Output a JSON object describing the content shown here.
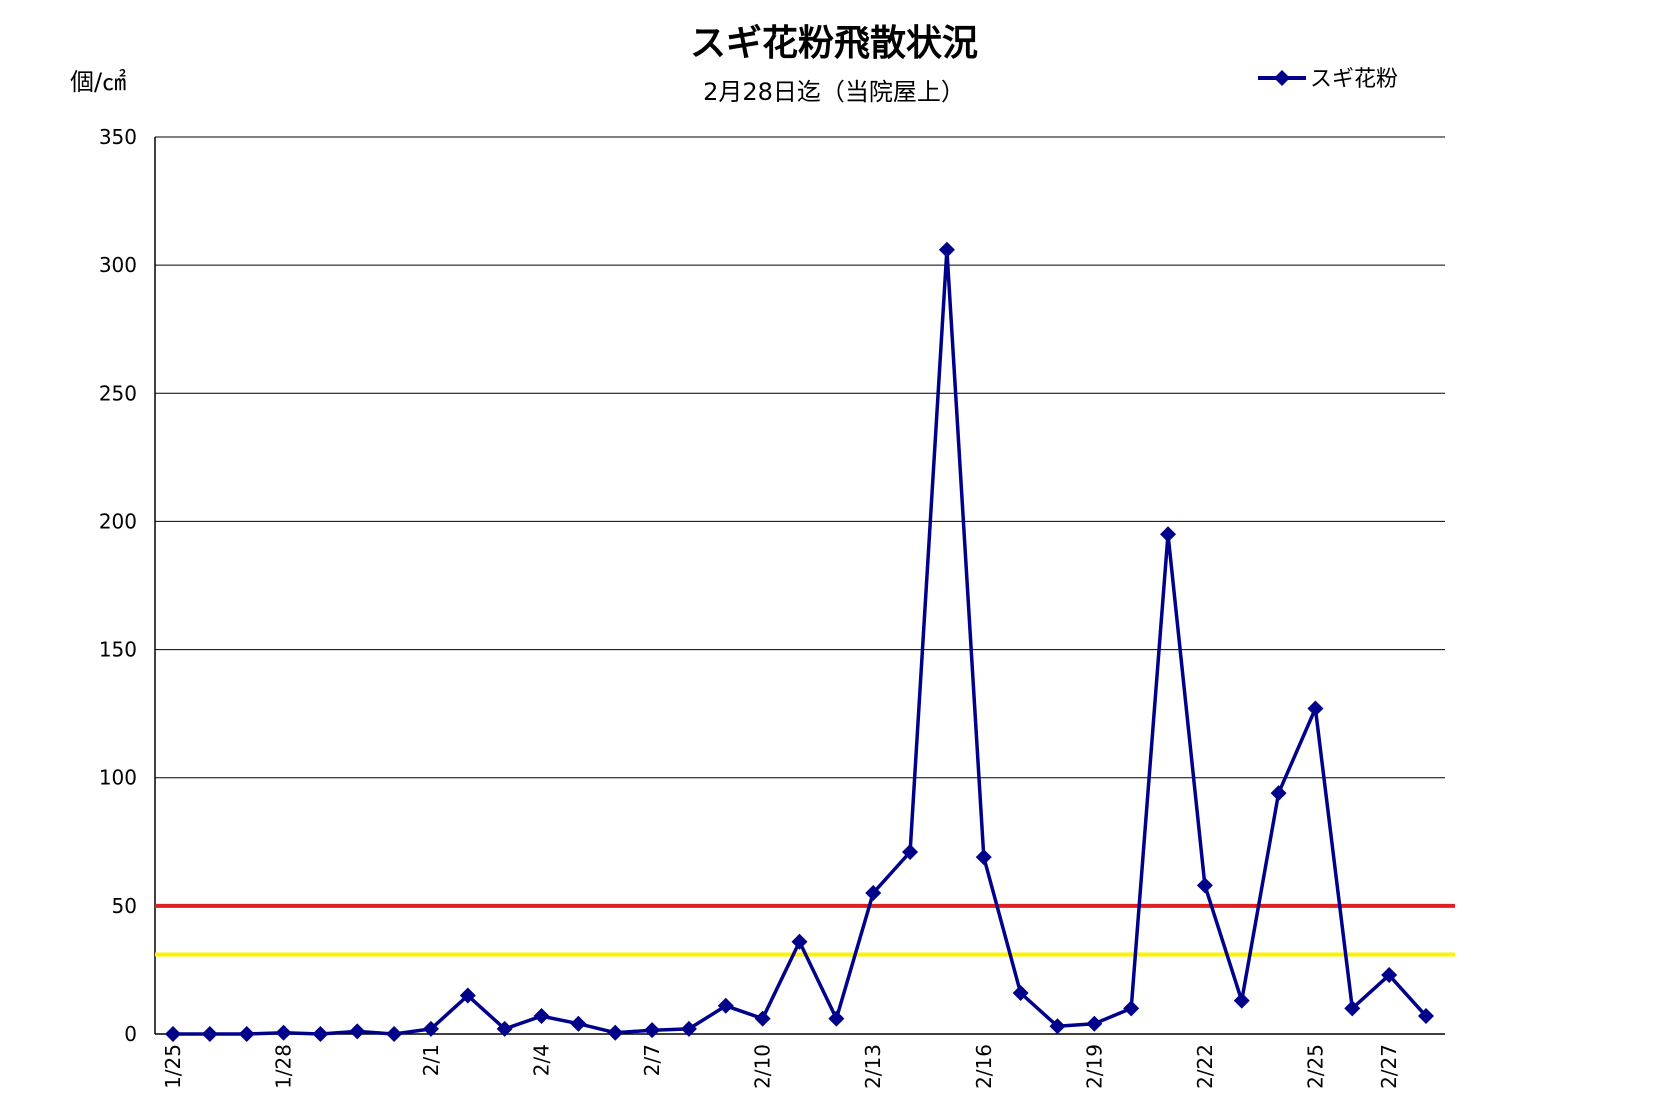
{
  "chart_data": {
    "type": "line",
    "title": "スギ花粉飛散状況",
    "subtitle": "2月28日迄（当院屋上）",
    "ylabel": "個/㎠",
    "ylim": [
      0,
      350
    ],
    "yticks": [
      0,
      50,
      100,
      150,
      200,
      250,
      300,
      350
    ],
    "grid": true,
    "legend_position": "top-right",
    "categories": [
      "1/25",
      "1/26",
      "1/27",
      "1/28",
      "1/29",
      "1/30",
      "1/31",
      "2/1",
      "2/2",
      "2/3",
      "2/4",
      "2/5",
      "2/6",
      "2/7",
      "2/8",
      "2/9",
      "2/10",
      "2/11",
      "2/12",
      "2/13",
      "2/14",
      "2/15",
      "2/16",
      "2/17",
      "2/18",
      "2/19",
      "2/20",
      "2/21",
      "2/22",
      "2/23",
      "2/24",
      "2/25",
      "2/26",
      "2/27",
      "2/28"
    ],
    "xtick_labels": [
      "1/25",
      "",
      "",
      "1/28",
      "",
      "",
      "",
      "2/1",
      "",
      "",
      "2/4",
      "",
      "",
      "2/7",
      "",
      "",
      "2/10",
      "",
      "",
      "2/13",
      "",
      "",
      "2/16",
      "",
      "",
      "2/19",
      "",
      "",
      "2/22",
      "",
      "",
      "2/25",
      "",
      "2/27",
      ""
    ],
    "series": [
      {
        "name": "スギ花粉",
        "color": "#00008B",
        "marker": "diamond",
        "values": [
          0,
          0,
          0,
          0.5,
          0,
          1,
          0,
          2,
          15,
          2,
          7,
          4,
          0.5,
          1.5,
          2,
          11,
          6,
          36,
          6,
          55,
          71,
          306,
          69,
          16,
          3,
          4,
          10,
          195,
          58,
          13,
          94,
          127,
          10,
          23,
          7
        ]
      }
    ],
    "reference_lines": [
      {
        "value": 50,
        "color": "#E02020"
      },
      {
        "value": 31,
        "color": "#FFF200"
      }
    ]
  }
}
